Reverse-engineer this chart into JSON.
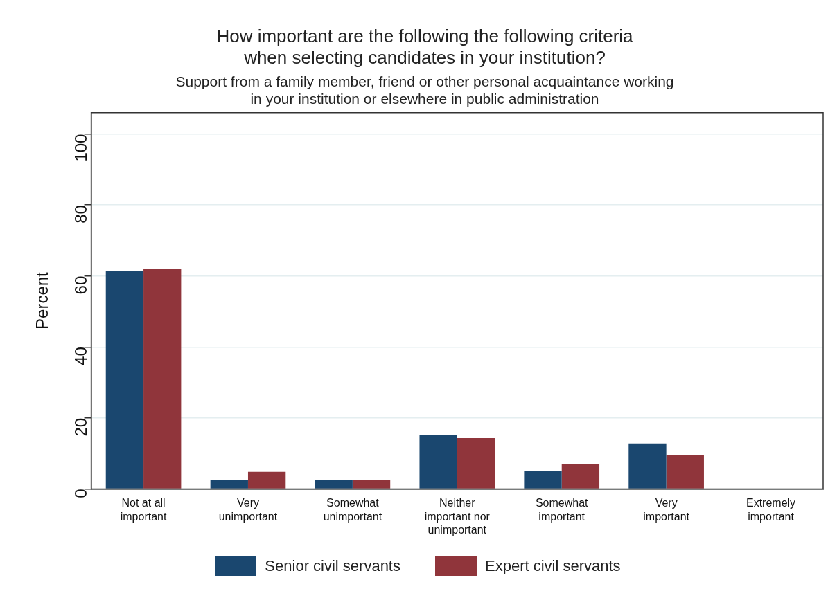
{
  "chart_data": {
    "type": "bar",
    "title": [
      "How important are the following the following criteria",
      "when selecting candidates in your institution?"
    ],
    "subtitle": [
      "Support from a family member, friend or other personal acquaintance working",
      "in your institution or elsewhere in public administration"
    ],
    "ylabel": "Percent",
    "categories": [
      "Not at all important",
      "Very unimportant",
      "Somewhat unimportant",
      "Neither important nor unimportant",
      "Somewhat important",
      "Very important",
      "Extremely important"
    ],
    "series": [
      {
        "name": "Senior civil servants",
        "color": "#1a476f",
        "values": [
          61.5,
          2.6,
          2.6,
          15.3,
          5.1,
          12.8,
          0
        ]
      },
      {
        "name": "Expert civil servants",
        "color": "#90353b",
        "values": [
          62,
          4.8,
          2.4,
          14.3,
          7.1,
          9.6,
          0
        ]
      }
    ],
    "ylim": [
      0,
      106
    ],
    "yticks": [
      0,
      20,
      40,
      60,
      80,
      100
    ],
    "grid": "y",
    "legend": "bottom"
  }
}
